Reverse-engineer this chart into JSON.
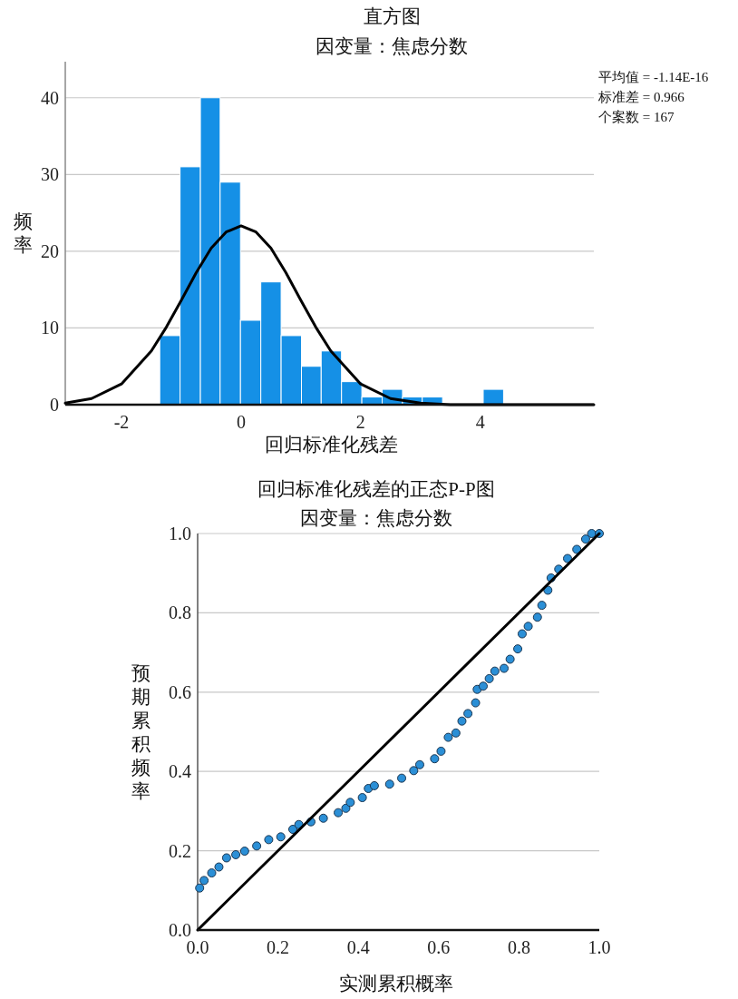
{
  "chart_data": [
    {
      "type": "histogram",
      "title": "直方图",
      "subtitle": "因变量：焦虑分数",
      "xlabel": "回归标准化残差",
      "ylabel": "频率",
      "xlim": [
        -2.94,
        5.9
      ],
      "ylim": [
        0,
        44.7
      ],
      "xticks": [
        -2,
        0,
        2,
        4
      ],
      "yticks": [
        0,
        10,
        20,
        30,
        40
      ],
      "grid": "y",
      "annotations": [
        "平均值 = -1.14E-16",
        "标准差 = 0.966",
        "个案数 = 167"
      ],
      "series": [
        {
          "type": "histogram",
          "color": "#1590e6",
          "bins": [
            -1.36,
            -1.02,
            -0.68,
            -0.35,
            -0.01,
            0.33,
            0.67,
            1.01,
            1.34,
            1.68,
            2.02,
            2.36,
            2.7,
            3.03,
            3.37
          ],
          "values": [
            9,
            31,
            40,
            29,
            11,
            16,
            9,
            5,
            7,
            3,
            1,
            2,
            1,
            1
          ]
        },
        {
          "type": "histogram",
          "color": "#1590e6",
          "bins": [
            4.05,
            4.39
          ],
          "values": [
            2
          ]
        },
        {
          "type": "line",
          "color": "#000000",
          "x": [
            -2.94,
            -2.5,
            -2,
            -1.5,
            -1.25,
            -1,
            -0.75,
            -0.5,
            -0.25,
            0,
            0.25,
            0.5,
            0.75,
            1,
            1.25,
            1.5,
            2,
            2.5,
            3,
            3.5,
            4,
            5,
            5.9
          ],
          "values": [
            0.2,
            0.8,
            2.7,
            7,
            10.1,
            13.6,
            17.2,
            20.4,
            22.5,
            23.3,
            22.5,
            20.4,
            17.2,
            13.6,
            10.1,
            7,
            2.7,
            0.8,
            0.2,
            0,
            0,
            0,
            0
          ]
        }
      ]
    },
    {
      "type": "scatter",
      "title": "回归标准化残差的正态P-P图",
      "subtitle": "因变量：焦虑分数",
      "xlabel": "实测累积概率",
      "ylabel": "预期累积频率",
      "xlim": [
        0,
        1
      ],
      "ylim": [
        0,
        1
      ],
      "xticks": [
        {
          "value": 0,
          "label": "0.0"
        },
        {
          "value": 0.2,
          "label": "0.2"
        },
        {
          "value": 0.4,
          "label": "0.4"
        },
        {
          "value": 0.6,
          "label": "0.6"
        },
        {
          "value": 0.8,
          "label": "0.8"
        },
        {
          "value": 1,
          "label": "1.0"
        }
      ],
      "yticks": [
        {
          "value": 0,
          "label": "0.0"
        },
        {
          "value": 0.2,
          "label": "0.2"
        },
        {
          "value": 0.4,
          "label": "0.4"
        },
        {
          "value": 0.6,
          "label": "0.6"
        },
        {
          "value": 0.8,
          "label": "0.8"
        },
        {
          "value": 1,
          "label": "1.0"
        }
      ],
      "grid": "y",
      "series": [
        {
          "type": "scatter",
          "marker": "circle",
          "color": "#2b8fd6",
          "x": [
            0.005,
            0.016,
            0.035,
            0.053,
            0.072,
            0.095,
            0.117,
            0.147,
            0.177,
            0.207,
            0.237,
            0.252,
            0.282,
            0.313,
            0.35,
            0.369,
            0.38,
            0.41,
            0.425,
            0.44,
            0.478,
            0.508,
            0.538,
            0.553,
            0.59,
            0.606,
            0.624,
            0.643,
            0.658,
            0.673,
            0.692,
            0.696,
            0.711,
            0.726,
            0.74,
            0.763,
            0.778,
            0.797,
            0.808,
            0.823,
            0.846,
            0.857,
            0.872,
            0.88,
            0.899,
            0.921,
            0.944,
            0.966,
            0.981,
            1.0
          ],
          "values": [
            0.106,
            0.125,
            0.144,
            0.159,
            0.182,
            0.19,
            0.199,
            0.212,
            0.228,
            0.235,
            0.254,
            0.266,
            0.273,
            0.282,
            0.296,
            0.307,
            0.322,
            0.334,
            0.357,
            0.364,
            0.368,
            0.383,
            0.402,
            0.417,
            0.432,
            0.451,
            0.486,
            0.497,
            0.527,
            0.546,
            0.573,
            0.607,
            0.615,
            0.634,
            0.653,
            0.66,
            0.683,
            0.709,
            0.747,
            0.766,
            0.789,
            0.819,
            0.857,
            0.888,
            0.91,
            0.937,
            0.96,
            0.986,
            1.0,
            1.0
          ]
        },
        {
          "type": "line",
          "color": "#000000",
          "x": [
            0,
            1
          ],
          "values": [
            0,
            1
          ]
        }
      ]
    }
  ]
}
